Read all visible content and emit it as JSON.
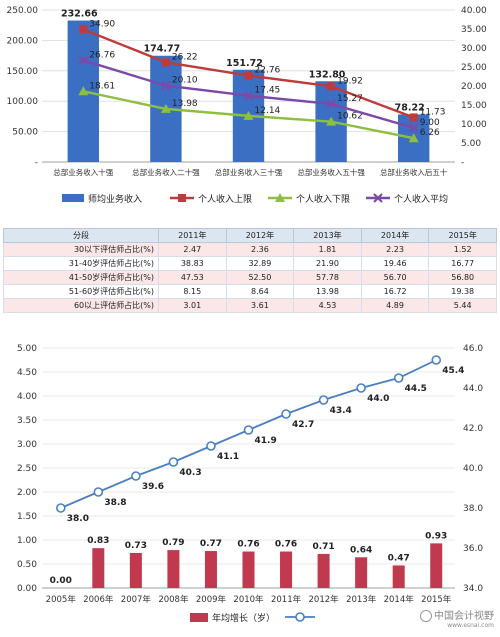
{
  "chart_data": [
    {
      "type": "bar+line",
      "categories": [
        "总部业务收入十强",
        "总部业务收入二十强",
        "总部业务收入三十强",
        "总部业务收入五十强",
        "总部业务收入后五十"
      ],
      "bar_series": {
        "name": "师均业务收入",
        "values": [
          232.66,
          174.77,
          151.72,
          132.8,
          78.22
        ],
        "color": "#3a6fc3"
      },
      "line_series": [
        {
          "name": "个人收入上限",
          "values": [
            34.9,
            26.22,
            22.76,
            19.92,
            11.73
          ],
          "color": "#c0393b",
          "marker": "square"
        },
        {
          "name": "个人收入下限",
          "values": [
            18.61,
            13.98,
            12.14,
            10.62,
            6.26
          ],
          "color": "#8fbf3f",
          "marker": "triangle"
        },
        {
          "name": "个人收入平均",
          "values": [
            26.76,
            20.1,
            17.45,
            15.27,
            9.0
          ],
          "color": "#7b4aa8",
          "marker": "x"
        }
      ],
      "y_left_ticks": [
        "-",
        "50.00",
        "100.00",
        "150.00",
        "200.00",
        "250.00"
      ],
      "y_left_range": [
        0,
        250
      ],
      "y_right_ticks": [
        "-",
        "5.00",
        "10.00",
        "15.00",
        "20.00",
        "25.00",
        "30.00",
        "35.00",
        "40.00"
      ],
      "y_right_range": [
        0,
        40
      ],
      "grid": true,
      "legend_position": "bottom"
    },
    {
      "type": "table",
      "headers": [
        "分段",
        "2011年",
        "2012年",
        "2013年",
        "2014年",
        "2015年"
      ],
      "rows": [
        [
          "30以下评估师占比(%)",
          "2.47",
          "2.36",
          "1.81",
          "2.23",
          "1.52"
        ],
        [
          "31-40岁评估师占比(%)",
          "38.83",
          "32.89",
          "21.90",
          "19.46",
          "16.77"
        ],
        [
          "41-50岁评估师占比(%)",
          "47.53",
          "52.50",
          "57.78",
          "56.70",
          "56.80"
        ],
        [
          "51-60岁评估师占比(%)",
          "8.15",
          "8.64",
          "13.98",
          "16.72",
          "19.38"
        ],
        [
          "60以上评估师占比(%)",
          "3.01",
          "3.61",
          "4.53",
          "4.89",
          "5.44"
        ]
      ]
    },
    {
      "type": "bar+line",
      "categories": [
        "2005年",
        "2006年",
        "2007年",
        "2008年",
        "2009年",
        "2010年",
        "2011年",
        "2012年",
        "2013年",
        "2014年",
        "2015年"
      ],
      "bar_series": {
        "name": "年均增长（岁）",
        "values": [
          0.0,
          0.83,
          0.73,
          0.79,
          0.77,
          0.76,
          0.76,
          0.71,
          0.64,
          0.47,
          0.93
        ],
        "color": "#c0394f"
      },
      "line_series": [
        {
          "name": "",
          "values": [
            38.0,
            38.8,
            39.6,
            40.3,
            41.1,
            41.9,
            42.7,
            43.4,
            44.0,
            44.5,
            45.4
          ],
          "color": "#4a7fc1",
          "marker": "circle"
        }
      ],
      "y_left_ticks": [
        "0.00",
        "0.50",
        "1.00",
        "1.50",
        "2.00",
        "2.50",
        "3.00",
        "3.50",
        "4.00",
        "4.50",
        "5.00"
      ],
      "y_left_range": [
        0,
        5
      ],
      "y_right_ticks": [
        "34.0",
        "36.0",
        "38.0",
        "40.0",
        "42.0",
        "44.0",
        "46.0"
      ],
      "y_right_range": [
        34,
        46
      ],
      "grid": true,
      "legend_position": "bottom"
    }
  ],
  "watermark": {
    "title": "中国会计视野",
    "url": "www.esnai.com"
  }
}
